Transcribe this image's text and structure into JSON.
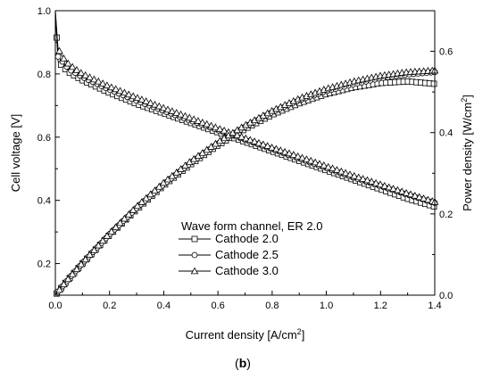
{
  "chart_data": {
    "type": "line",
    "panel_label": "(b)",
    "xlabel": "Current density [A/cm",
    "xlabel_sup": "2",
    "xlabel_end": "]",
    "ylabel": "Cell voltage [V]",
    "y2label": "Power density [W/cm",
    "y2label_sup": "2",
    "y2label_end": "]",
    "xlim": [
      0,
      1.4
    ],
    "ylim": [
      0.1,
      1.0
    ],
    "y2lim": [
      0,
      0.7
    ],
    "x_ticks": [
      "0.0",
      "0.2",
      "0.4",
      "0.6",
      "0.8",
      "1.0",
      "1.2",
      "1.4"
    ],
    "y_ticks": [
      "0.2",
      "0.4",
      "0.6",
      "0.8",
      "1.0"
    ],
    "y2_ticks": [
      "0.0",
      "0.2",
      "0.4",
      "0.6"
    ],
    "grid": false,
    "legend": {
      "title": "Wave form channel, ER 2.0",
      "placement": "lower-center",
      "entries": [
        "Cathode 2.0",
        "Cathode 2.5",
        "Cathode 3.0"
      ]
    },
    "series": [
      {
        "name": "Cathode 2.0",
        "marker": "square",
        "voltage": {
          "x": [
            0.0,
            0.01,
            0.03,
            0.05,
            0.1,
            0.2,
            0.3,
            0.4,
            0.5,
            0.6,
            0.7,
            0.8,
            0.9,
            1.0,
            1.1,
            1.2,
            1.3,
            1.4
          ],
          "y": [
            0.99,
            0.84,
            0.82,
            0.805,
            0.78,
            0.74,
            0.705,
            0.675,
            0.645,
            0.615,
            0.585,
            0.555,
            0.525,
            0.495,
            0.465,
            0.435,
            0.405,
            0.38
          ]
        },
        "power": {
          "x": [
            0.0,
            0.01,
            0.03,
            0.05,
            0.1,
            0.2,
            0.3,
            0.4,
            0.5,
            0.6,
            0.7,
            0.8,
            0.9,
            1.0,
            1.1,
            1.2,
            1.3,
            1.4
          ],
          "y": [
            0.0,
            0.008,
            0.025,
            0.04,
            0.078,
            0.148,
            0.211,
            0.27,
            0.322,
            0.369,
            0.409,
            0.444,
            0.472,
            0.495,
            0.511,
            0.522,
            0.526,
            0.52
          ]
        }
      },
      {
        "name": "Cathode 2.5",
        "marker": "circle",
        "voltage": {
          "x": [
            0.0,
            0.01,
            0.03,
            0.05,
            0.1,
            0.2,
            0.3,
            0.4,
            0.5,
            0.6,
            0.7,
            0.8,
            0.9,
            1.0,
            1.1,
            1.2,
            1.3,
            1.4
          ],
          "y": [
            1.0,
            0.855,
            0.835,
            0.815,
            0.79,
            0.75,
            0.715,
            0.683,
            0.652,
            0.622,
            0.592,
            0.562,
            0.532,
            0.502,
            0.472,
            0.445,
            0.418,
            0.392
          ]
        },
        "power": {
          "x": [
            0.0,
            0.01,
            0.03,
            0.05,
            0.1,
            0.2,
            0.3,
            0.4,
            0.5,
            0.6,
            0.7,
            0.8,
            0.9,
            1.0,
            1.1,
            1.2,
            1.3,
            1.4
          ],
          "y": [
            0.0,
            0.009,
            0.025,
            0.041,
            0.079,
            0.15,
            0.215,
            0.273,
            0.326,
            0.373,
            0.414,
            0.45,
            0.479,
            0.502,
            0.519,
            0.534,
            0.543,
            0.549
          ]
        }
      },
      {
        "name": "Cathode 3.0",
        "marker": "triangle",
        "voltage": {
          "x": [
            0.0,
            0.01,
            0.03,
            0.05,
            0.1,
            0.2,
            0.3,
            0.4,
            0.5,
            0.6,
            0.7,
            0.8,
            0.9,
            1.0,
            1.1,
            1.2,
            1.3,
            1.4
          ],
          "y": [
            1.0,
            0.88,
            0.85,
            0.83,
            0.8,
            0.76,
            0.725,
            0.692,
            0.66,
            0.628,
            0.597,
            0.567,
            0.538,
            0.508,
            0.478,
            0.45,
            0.422,
            0.395
          ]
        },
        "power": {
          "x": [
            0.0,
            0.01,
            0.03,
            0.05,
            0.1,
            0.2,
            0.3,
            0.4,
            0.5,
            0.6,
            0.7,
            0.8,
            0.9,
            1.0,
            1.1,
            1.2,
            1.3,
            1.4
          ],
          "y": [
            0.0,
            0.009,
            0.026,
            0.042,
            0.08,
            0.152,
            0.218,
            0.277,
            0.33,
            0.377,
            0.418,
            0.454,
            0.484,
            0.508,
            0.526,
            0.54,
            0.549,
            0.553
          ]
        }
      }
    ]
  }
}
